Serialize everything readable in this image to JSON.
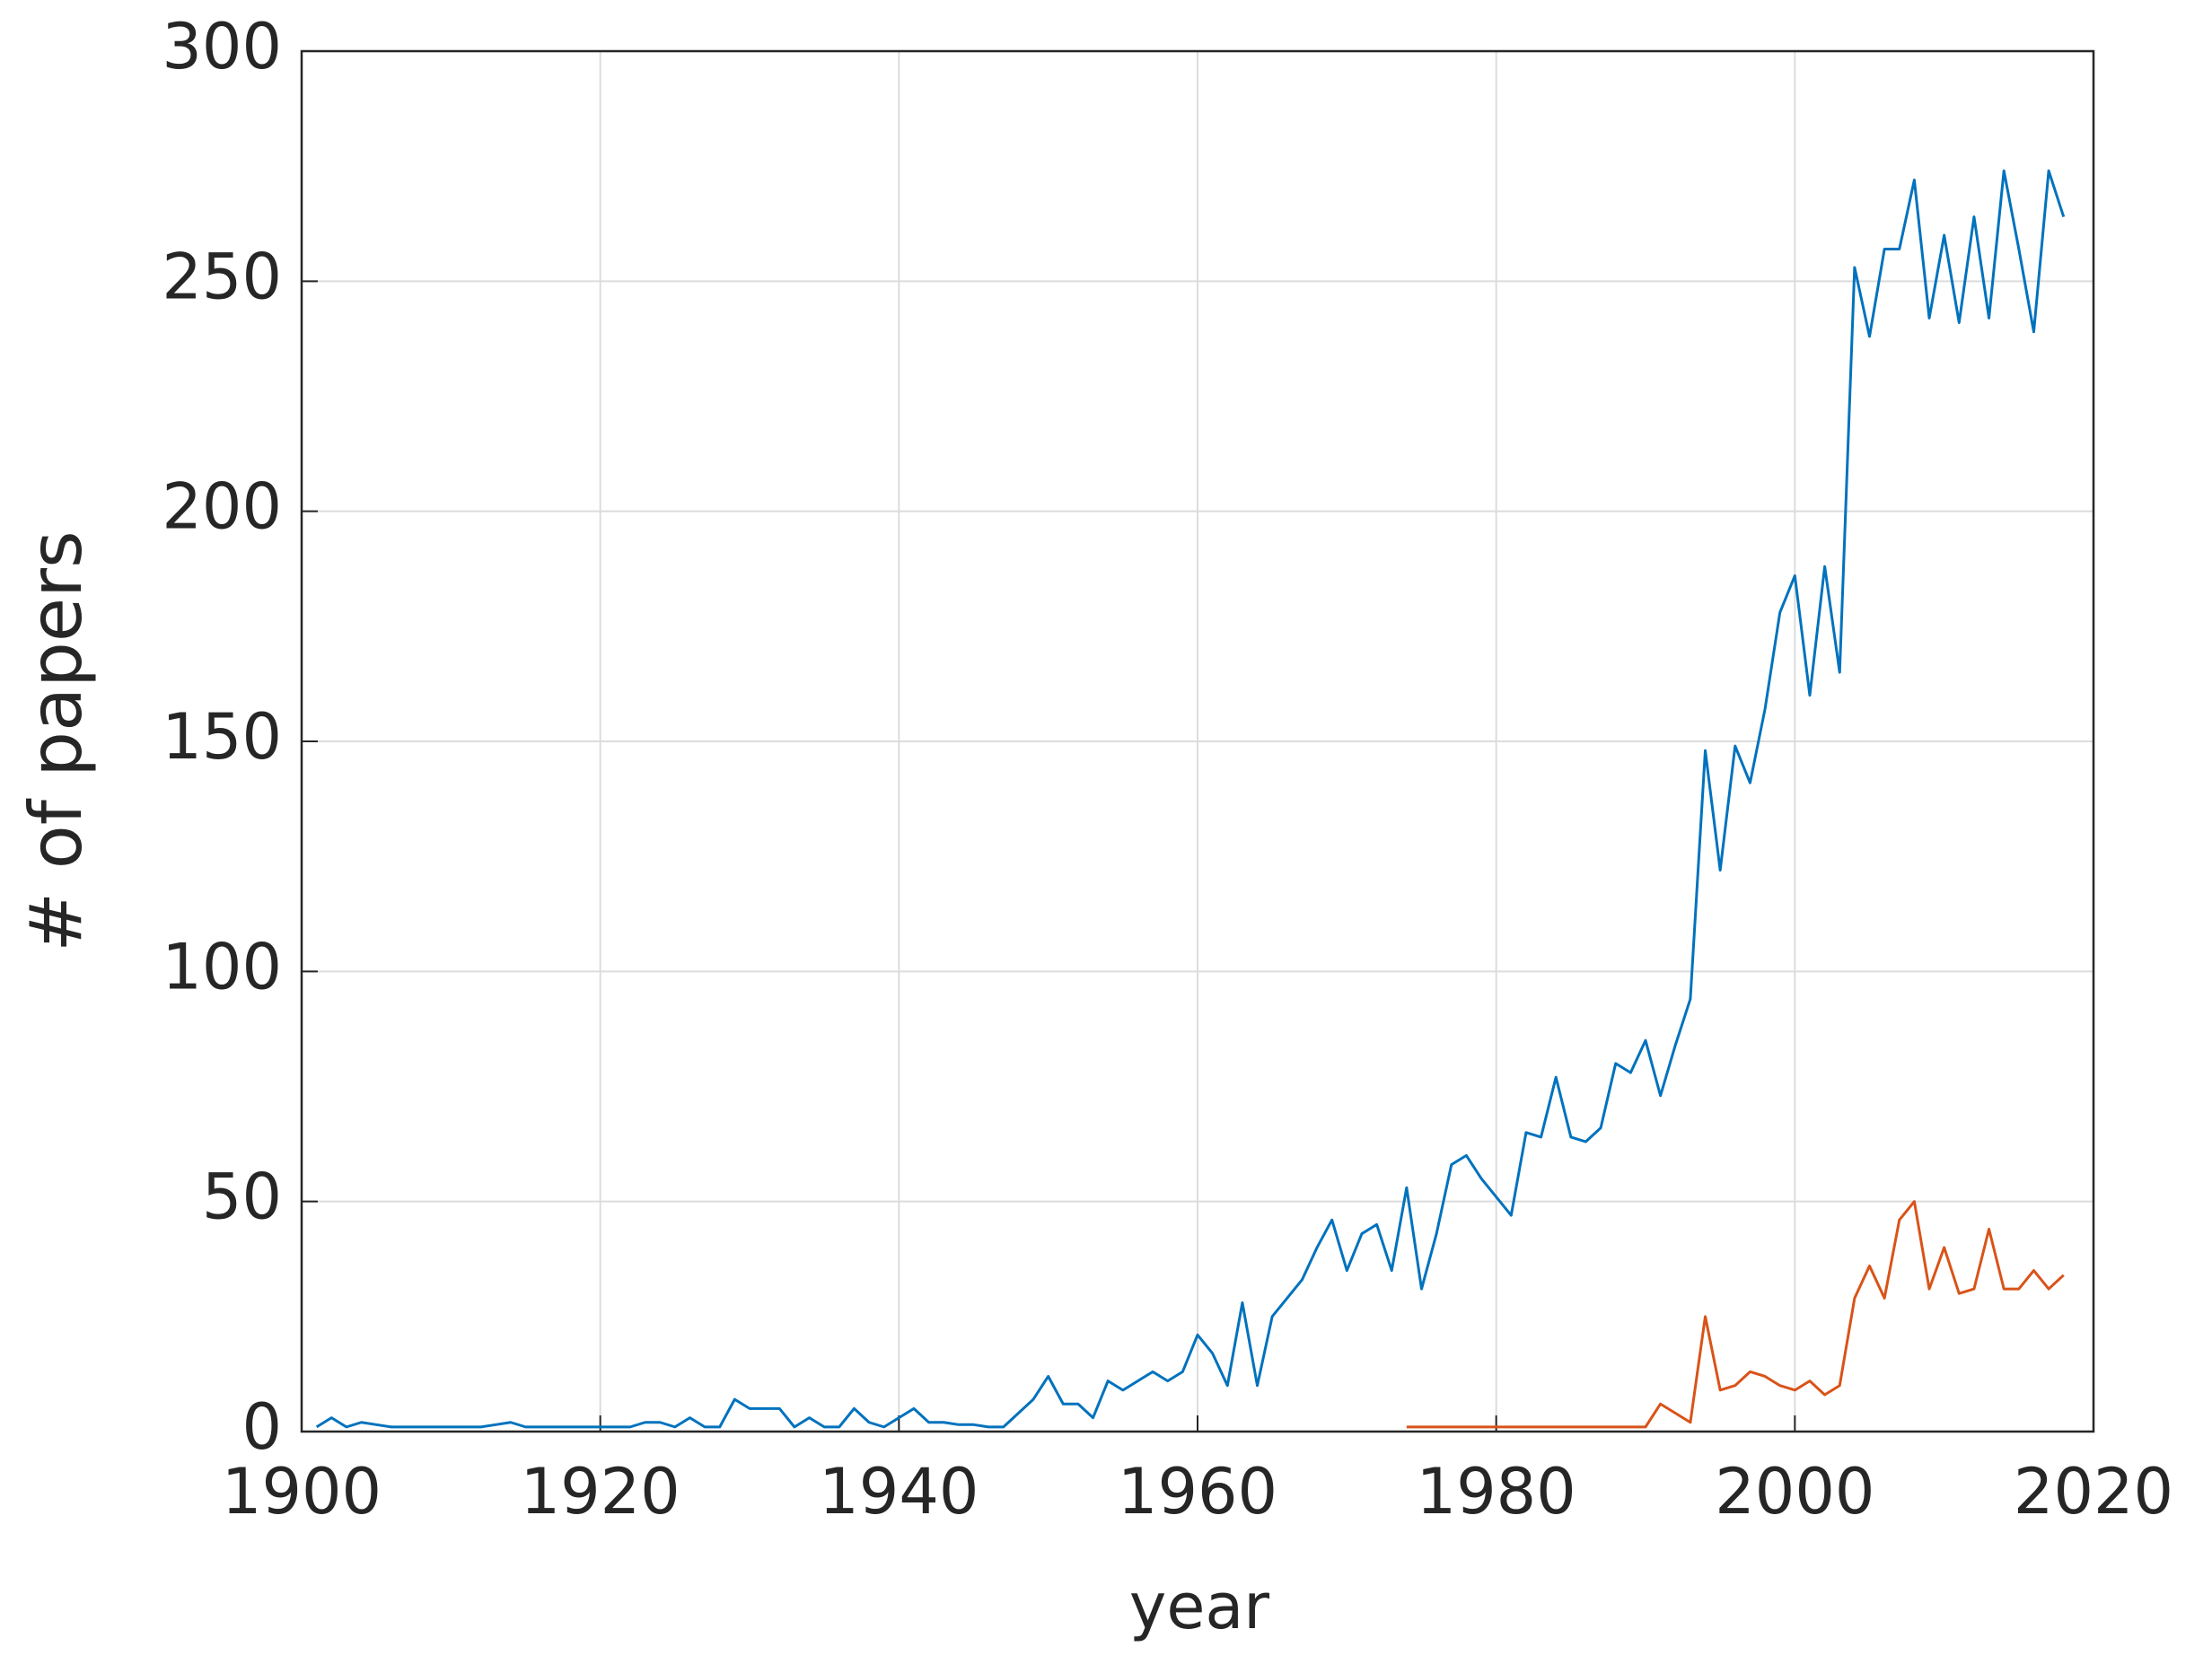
{
  "chart_data": {
    "type": "line",
    "xlabel": "year",
    "ylabel": "# of papers",
    "x": [
      1901,
      1902,
      1903,
      1904,
      1905,
      1906,
      1907,
      1908,
      1909,
      1910,
      1911,
      1912,
      1913,
      1914,
      1915,
      1916,
      1917,
      1918,
      1919,
      1920,
      1921,
      1922,
      1923,
      1924,
      1925,
      1926,
      1927,
      1928,
      1929,
      1930,
      1931,
      1932,
      1933,
      1934,
      1935,
      1936,
      1937,
      1938,
      1939,
      1940,
      1941,
      1942,
      1943,
      1944,
      1945,
      1946,
      1947,
      1948,
      1949,
      1950,
      1951,
      1952,
      1953,
      1954,
      1955,
      1956,
      1957,
      1958,
      1959,
      1960,
      1961,
      1962,
      1963,
      1964,
      1965,
      1966,
      1967,
      1968,
      1969,
      1970,
      1971,
      1972,
      1973,
      1974,
      1975,
      1976,
      1977,
      1978,
      1979,
      1980,
      1981,
      1982,
      1983,
      1984,
      1985,
      1986,
      1987,
      1988,
      1989,
      1990,
      1991,
      1992,
      1993,
      1994,
      1995,
      1996,
      1997,
      1998,
      1999,
      2000,
      2001,
      2002,
      2003,
      2004,
      2005,
      2006,
      2007,
      2008,
      2009,
      2010,
      2011,
      2012,
      2013,
      2014,
      2015,
      2016,
      2017,
      2018
    ],
    "series": [
      {
        "color": "#0072bd",
        "values": [
          1,
          3,
          1,
          2,
          1.5,
          1,
          1,
          1,
          1,
          1,
          1,
          1,
          1.5,
          2,
          1,
          1,
          1,
          1,
          1,
          1,
          1,
          1,
          2,
          2,
          1,
          3,
          1,
          1,
          7,
          5,
          5,
          5,
          1,
          3,
          1,
          1,
          5,
          2,
          1,
          3,
          5,
          2,
          2,
          1.5,
          1.5,
          1,
          1,
          4,
          7,
          12,
          6,
          6,
          3,
          11,
          9,
          11,
          13,
          11,
          13,
          21,
          17,
          10,
          28,
          10,
          25,
          29,
          33,
          40,
          46,
          35,
          43,
          45,
          35,
          53,
          31,
          43,
          58,
          60,
          55,
          51,
          47,
          65,
          64,
          77,
          64,
          63,
          66,
          80,
          78,
          85,
          73,
          84,
          94,
          148,
          122,
          149,
          141,
          157,
          178,
          186,
          160,
          188,
          165,
          253,
          238,
          257,
          257,
          272,
          242,
          260,
          241,
          264,
          242,
          274,
          257,
          239,
          274,
          264
        ]
      },
      {
        "color": "#d95319",
        "values": [
          null,
          null,
          null,
          null,
          null,
          null,
          null,
          null,
          null,
          null,
          null,
          null,
          null,
          null,
          null,
          null,
          null,
          null,
          null,
          null,
          null,
          null,
          null,
          null,
          null,
          null,
          null,
          null,
          null,
          null,
          null,
          null,
          null,
          null,
          null,
          null,
          null,
          null,
          null,
          null,
          null,
          null,
          null,
          null,
          null,
          null,
          null,
          null,
          null,
          null,
          null,
          null,
          null,
          null,
          null,
          null,
          null,
          null,
          null,
          null,
          null,
          null,
          null,
          null,
          null,
          null,
          null,
          null,
          null,
          null,
          null,
          null,
          null,
          1,
          1,
          1,
          1,
          1,
          1,
          1,
          1,
          1,
          1,
          1,
          1,
          1,
          1,
          1,
          1,
          1,
          6,
          4,
          2,
          25,
          9,
          10,
          13,
          12,
          10,
          9,
          11,
          8,
          10,
          29,
          36,
          29,
          46,
          50,
          31,
          40,
          30,
          31,
          44,
          31,
          31,
          35,
          31,
          34
        ]
      }
    ],
    "xlim": [
      1900,
      2020
    ],
    "xticks": [
      1900,
      1920,
      1940,
      1960,
      1980,
      2000,
      2020
    ],
    "ylim": [
      0,
      300
    ],
    "yticks": [
      0,
      50,
      100,
      150,
      200,
      250,
      300
    ],
    "grid": true
  }
}
